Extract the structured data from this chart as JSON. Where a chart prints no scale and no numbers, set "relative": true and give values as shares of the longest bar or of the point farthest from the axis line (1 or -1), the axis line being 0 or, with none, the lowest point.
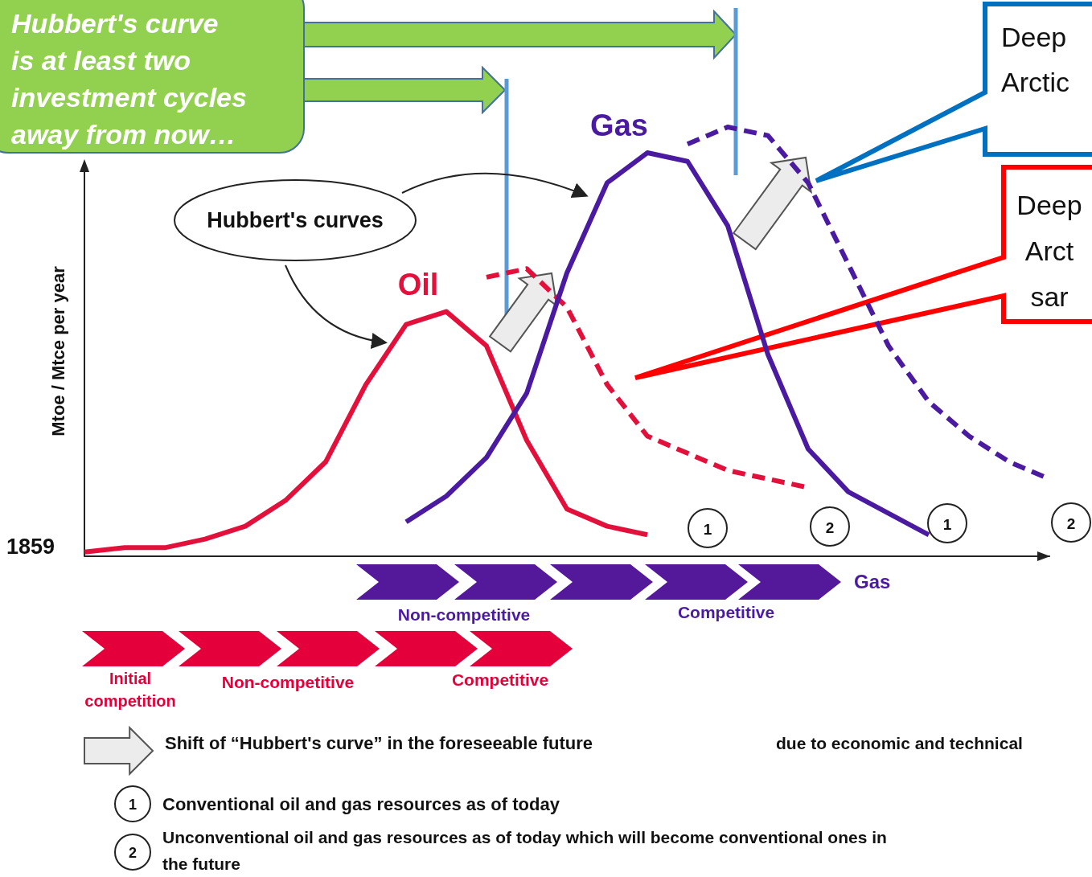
{
  "chart_data": {
    "type": "line",
    "relative": true,
    "ylabel": "Mtoe / Mtce per year",
    "marker": "none",
    "categories": [
      null,
      null,
      null,
      null,
      null,
      null,
      null,
      null,
      null,
      null,
      null,
      null,
      null,
      null,
      null,
      null,
      null,
      null,
      null,
      null,
      null,
      null,
      null,
      null,
      null
    ],
    "series": [
      {
        "name": "Oil",
        "color": "#e4103c",
        "values": [
          0.01,
          0.02,
          0.02,
          0.04,
          0.07,
          0.13,
          0.22,
          0.4,
          0.54,
          0.57,
          0.49,
          0.27,
          0.11,
          0.07,
          0.05,
          null,
          null,
          null,
          null,
          null,
          null,
          null,
          null,
          null,
          null
        ]
      },
      {
        "color": "#e4103c",
        "line_style": "dashed",
        "values": [
          null,
          null,
          null,
          null,
          null,
          null,
          null,
          null,
          null,
          null,
          0.65,
          0.67,
          0.58,
          0.4,
          0.28,
          0.24,
          0.2,
          0.18,
          0.16,
          null,
          null,
          null,
          null,
          null,
          null
        ]
      },
      {
        "name": "Gas",
        "color": "#4a1aa0",
        "values": [
          null,
          null,
          null,
          null,
          null,
          null,
          null,
          null,
          0.08,
          0.14,
          0.23,
          0.38,
          0.66,
          0.87,
          0.94,
          0.92,
          0.77,
          0.47,
          0.25,
          0.15,
          0.1,
          0.05,
          null,
          null,
          null
        ]
      },
      {
        "color": "#4a1aa0",
        "line_style": "dashed",
        "values": [
          null,
          null,
          null,
          null,
          null,
          null,
          null,
          null,
          null,
          null,
          null,
          null,
          null,
          null,
          null,
          0.96,
          1,
          0.98,
          0.87,
          0.68,
          0.49,
          0.36,
          0.28,
          0.22,
          0.18
        ]
      }
    ],
    "annotations": [
      "Hubbert's curve\nis at least two\ninvestment cycles\naway from now…",
      "Deep\nArctic",
      "Deep\nArct\nsar",
      "Hubbert's curves",
      "1859",
      "1",
      "2",
      "1",
      "2",
      "Gas",
      "Non-competitive",
      "Competitive",
      "Initial\ncompetition",
      "Non-competitive",
      "Competitive",
      "Shift of “Hubbert's curve” in the foreseeable future",
      "due to economic and technical",
      "1",
      "Conventional oil and gas resources as of today",
      "2",
      "Unconventional oil and gas resources as of today which will become conventional ones in\nthe future"
    ]
  }
}
